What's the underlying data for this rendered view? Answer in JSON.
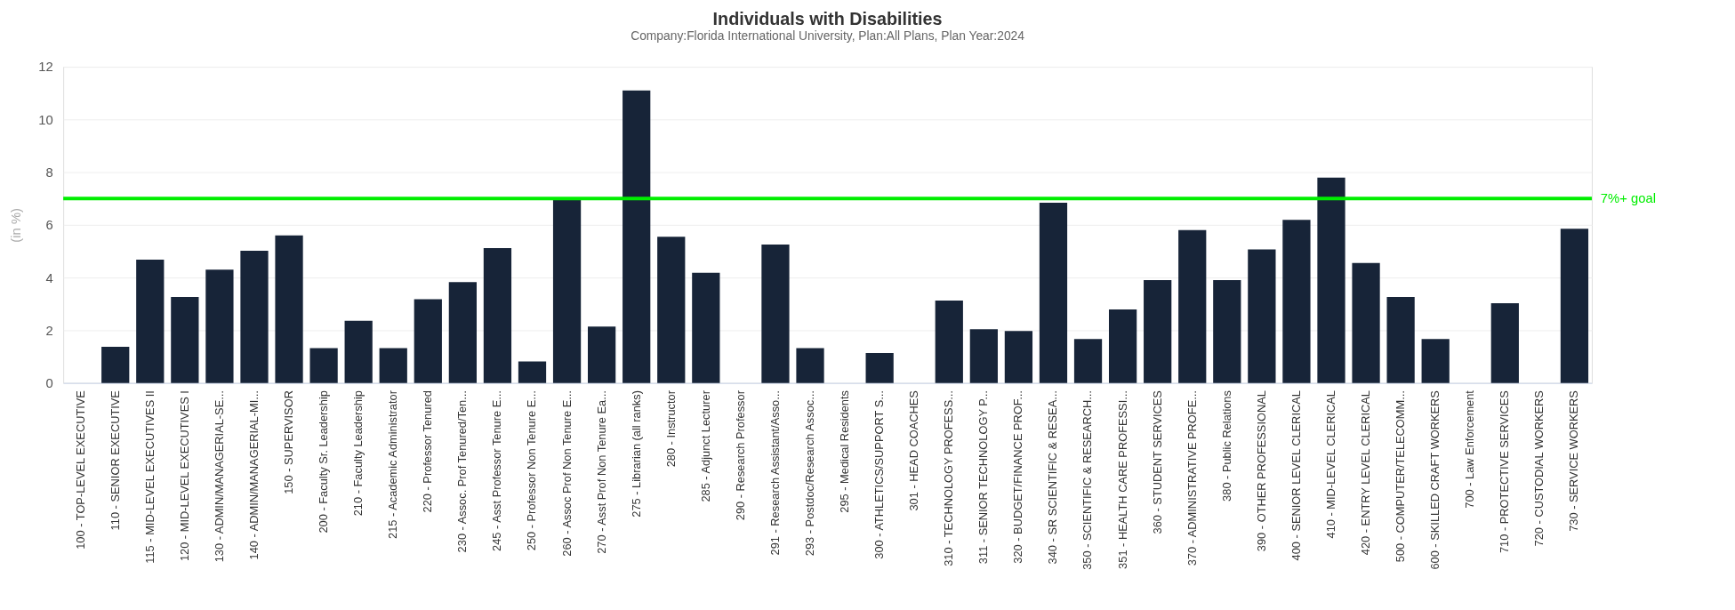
{
  "chart_data": {
    "type": "bar",
    "title": "Individuals with Disabilities",
    "subtitle": "Company:Florida International University, Plan:All Plans, Plan Year:2024",
    "ylabel": "(in %)",
    "categories": [
      "100 - TOP-LEVEL EXECUTIVE",
      "110 - SENIOR EXECUTIVE",
      "115 - MID-LEVEL EXECUTIVES II",
      "120 - MID-LEVEL EXECUTIVES I",
      "130 - ADMIN/MANAGERIAL-SE...",
      "140 - ADMIN/MANAGERIAL-MI...",
      "150 - SUPERVISOR",
      "200 - Faculty Sr. Leadership",
      "210 - Faculty Leadership",
      "215 - Academic Administrator",
      "220 - Professor Tenured",
      "230 - Assoc. Prof Tenured/Ten...",
      "245 - Asst Professor Tenure E...",
      "250 - Professor Non Tenure E...",
      "260 - Assoc Prof Non Tenure E...",
      "270 - Asst Prof Non Tenure Ea...",
      "275 - Librarian (all ranks)",
      "280 - Instructor",
      "285 - Adjunct Lecturer",
      "290 - Research Professor",
      "291 - Research Assistant/Asso...",
      "293 - Postdoc/Research Assoc...",
      "295 - Medical Residents",
      "300 - ATHLETICS/SUPPORT S...",
      "301 - HEAD COACHES",
      "310 - TECHNOLOGY PROFESS...",
      "311 - SENIOR TECHNOLOGY P...",
      "320 - BUDGET/FINANCE PROF...",
      "340 - SR SCIENTIFIC & RESEA...",
      "350 - SCIENTIFIC & RESEARCH...",
      "351 - HEALTH CARE PROFESSI...",
      "360 - STUDENT SERVICES",
      "370 - ADMINISTRATIVE PROFE...",
      "380 - Public Relations",
      "390 - OTHER PROFESSIONAL",
      "400 - SENIOR LEVEL CLERICAL",
      "410 - MID-LEVEL CLERICAL",
      "420 - ENTRY LEVEL CLERICAL",
      "500 - COMPUTER/TELECOMM...",
      "600 - SKILLED CRAFT WORKERS",
      "700 - Law Enforcement",
      "710 - PROTECTIVE SERVICES",
      "720 - CUSTODIAL WORKERS",
      "730 - SERVICE WORKERS"
    ],
    "values": [
      0,
      1.37,
      4.68,
      3.26,
      4.3,
      5.02,
      5.6,
      1.32,
      2.36,
      1.32,
      3.18,
      3.83,
      5.12,
      0.82,
      7.04,
      2.14,
      11.1,
      5.55,
      4.18,
      0,
      5.25,
      1.32,
      0,
      1.14,
      0,
      3.13,
      2.04,
      1.97,
      6.84,
      1.67,
      2.79,
      3.9,
      5.8,
      3.9,
      5.07,
      6.19,
      7.79,
      4.55,
      3.26,
      1.67,
      0,
      3.03,
      0,
      5.85
    ],
    "color": "#172438",
    "ylim": [
      0,
      12
    ],
    "yticks": [
      0,
      2,
      4,
      6,
      8,
      10,
      12
    ],
    "grid": "y",
    "ref_lines": [
      {
        "axis": "y",
        "value": 7,
        "label": "7%+ goal",
        "color": "#00ee00"
      }
    ]
  }
}
